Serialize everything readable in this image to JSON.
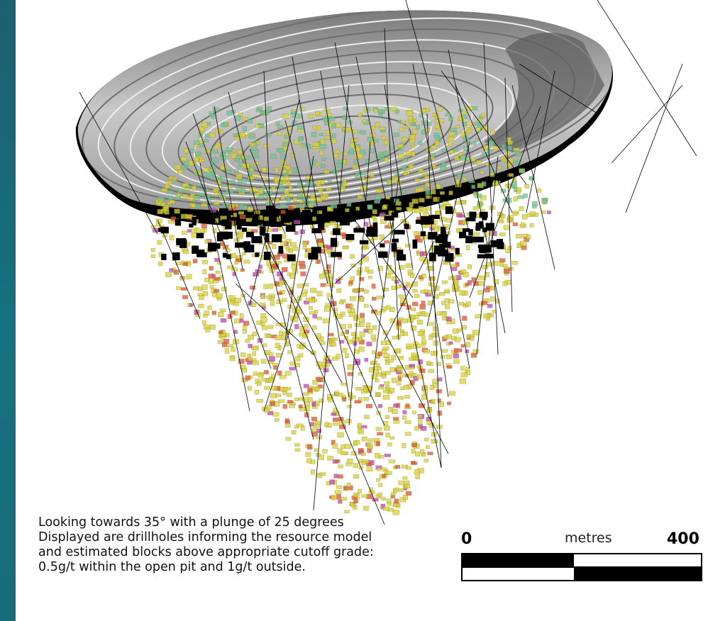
{
  "caption": {
    "line1": "Looking towards 35° with a plunge of 25 degrees",
    "line2": "Displayed are drillholes informing the resource model",
    "line3": "and estimated blocks above appropriate cutoff grade:",
    "line4": "0.5g/t within the open pit and 1g/t outside."
  },
  "scale_bar": {
    "start_label": "0",
    "unit_label": "metres",
    "end_label": "400"
  },
  "colors": {
    "background": "#17707f",
    "panel": "#ffffff",
    "pit_surface": "#a9a9a9",
    "pit_rim_shadow": "#000000",
    "block_low_grade": "#d8d23a",
    "block_mid_grade": "#e0503a",
    "block_high_grade": "#c040c0",
    "block_near_surface": "#6cc4a0",
    "drillhole": "#000000"
  }
}
